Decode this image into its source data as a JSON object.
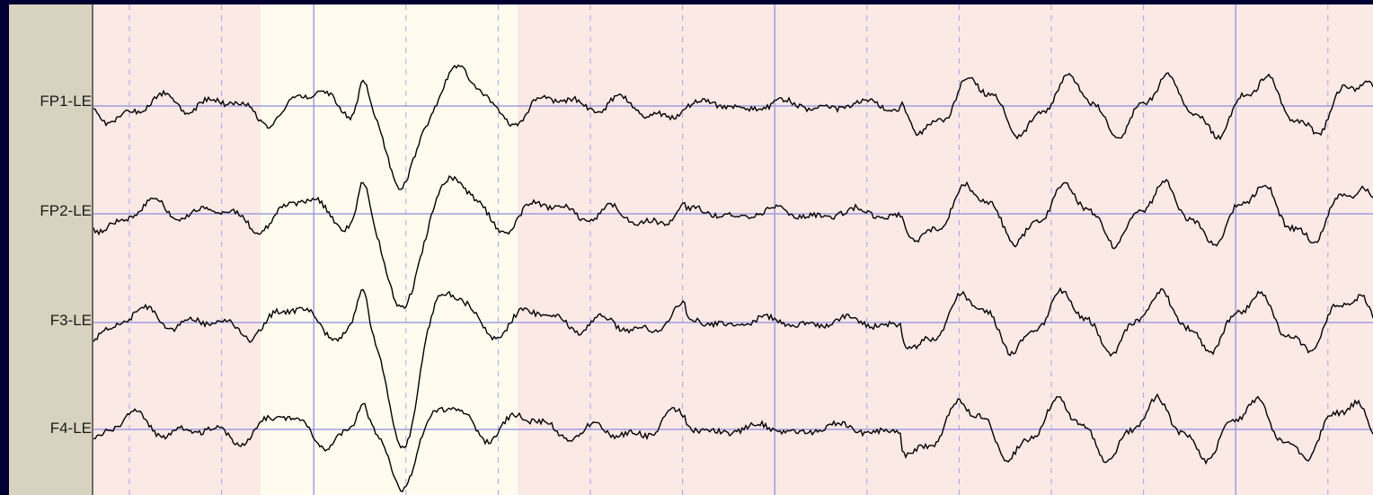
{
  "colors": {
    "frame": "#000033",
    "label_panel": "#d8d3c0",
    "plot_background": "#fbe9e6",
    "highlight_band": "#fffcef",
    "baseline": "#9e9ee0",
    "grid_major": "#9e9ee0",
    "grid_minor": "#a8a8e0",
    "trace": "#000000"
  },
  "channels": [
    {
      "label": "FP1-LE",
      "trace_icon": "waveform-icon"
    },
    {
      "label": "FP2-LE",
      "trace_icon": "waveform-icon"
    },
    {
      "label": "F3-LE",
      "trace_icon": "waveform-icon"
    },
    {
      "label": "F4-LE",
      "trace_icon": "waveform-icon"
    }
  ]
}
